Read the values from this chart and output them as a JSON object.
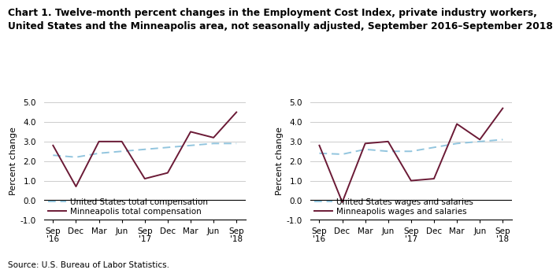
{
  "title_line1": "Chart 1. Twelve-month percent changes in the Employment Cost Index, private industry workers,",
  "title_line2": "United States and the Minneapolis area, not seasonally adjusted, September 2016–September 2018",
  "source": "Source: U.S. Bureau of Labor Statistics.",
  "x_labels": [
    "Sep\n'16",
    "Dec",
    "Mar",
    "Jun",
    "Sep\n'17",
    "Dec",
    "Mar",
    "Jun",
    "Sep\n'18"
  ],
  "ylim": [
    -1.0,
    5.0
  ],
  "yticks": [
    -1.0,
    0.0,
    1.0,
    2.0,
    3.0,
    4.0,
    5.0
  ],
  "ylabel": "Percent change",
  "left_chart": {
    "us_total": [
      2.3,
      2.2,
      2.4,
      2.5,
      2.6,
      2.7,
      2.8,
      2.9,
      2.9
    ],
    "mpls_total": [
      2.8,
      0.7,
      3.0,
      3.0,
      1.1,
      1.4,
      3.5,
      3.2,
      4.5
    ],
    "legend1": "United States total compensation",
    "legend2": "Minneapolis total compensation"
  },
  "right_chart": {
    "us_wages": [
      2.4,
      2.35,
      2.6,
      2.5,
      2.5,
      2.7,
      2.9,
      3.0,
      3.1
    ],
    "mpls_wages": [
      2.8,
      -0.1,
      2.9,
      3.0,
      1.0,
      1.1,
      3.9,
      3.1,
      4.7
    ],
    "legend1": "United States wages and salaries",
    "legend2": "Minneapolis wages and salaries"
  },
  "us_line_color": "#92C5DE",
  "mpls_line_color": "#6B1A36",
  "title_fontsize": 8.8,
  "axis_label_fontsize": 8,
  "tick_fontsize": 7.5,
  "legend_fontsize": 7.5,
  "source_fontsize": 7.5
}
